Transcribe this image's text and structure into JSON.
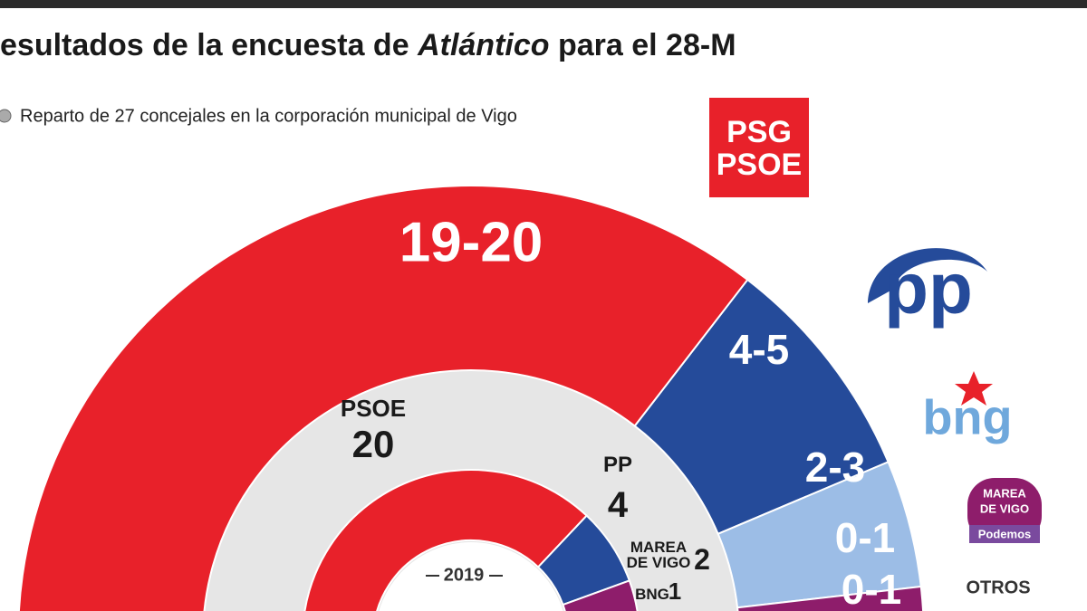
{
  "chart_data": {
    "type": "semicircle",
    "title": [
      "esultados de la encuesta de",
      "Atlántico",
      "para el 28-M"
    ],
    "subtitle": "Reparto de 27 concejales en la corporación municipal de Vigo",
    "rings": [
      {
        "label": "2019",
        "categories": [
          "PSOE",
          "PP",
          "MAREA DE VIGO",
          "BNG"
        ],
        "values": [
          20,
          4,
          2,
          1
        ],
        "colors": [
          "#e8212a",
          "#254b9a",
          "#8e1d6b",
          "#9cbde6"
        ]
      },
      {
        "value_labels": [
          "19-20",
          "4-5",
          "2-3",
          "0-1",
          "0-1"
        ],
        "low": [
          19,
          4,
          2,
          0,
          0
        ],
        "high": [
          20,
          5,
          3,
          1,
          1
        ],
        "colors": [
          "#e8212a",
          "#254b9a",
          "#9cbde6",
          "#8e1d6b",
          "#a9a9a9"
        ]
      }
    ]
  },
  "logos": {
    "psoe": [
      "PSG",
      "PSOE"
    ],
    "pp": "pp",
    "bng": "bng",
    "marea": [
      "MAREA",
      "DE VIGO",
      "Podemos"
    ],
    "otros": "OTROS"
  }
}
